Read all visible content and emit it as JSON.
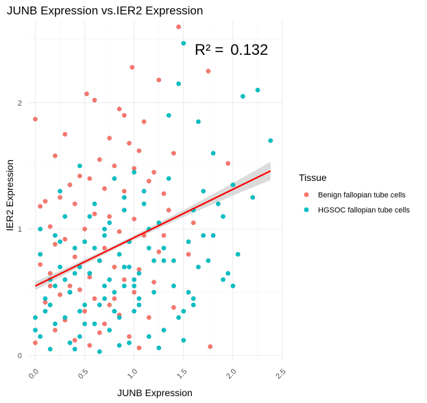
{
  "chart_data": {
    "type": "scatter",
    "title": "JUNB Expression vs.IER2 Expression",
    "xlabel": "JUNB Expression",
    "ylabel": "IER2 Expression",
    "xlim": [
      -0.08,
      2.5
    ],
    "ylim": [
      -0.04,
      2.65
    ],
    "x_ticks": [
      "0.0",
      "0.5",
      "1.0",
      "1.5",
      "2.0",
      "2.5"
    ],
    "x_tick_values": [
      0,
      0.5,
      1.0,
      1.5,
      2.0,
      2.5
    ],
    "y_ticks": [
      "0",
      "1",
      "2"
    ],
    "y_tick_values": [
      0,
      1,
      2
    ],
    "grid": true,
    "legend": {
      "title": "Tissue",
      "position": "right",
      "entries": [
        "Benign fallopian tube cells",
        "HGSOC fallopian tube cells"
      ]
    },
    "annotation": {
      "label": "R² =",
      "value": "0.132"
    },
    "fit": {
      "type": "linear",
      "x": [
        0.0,
        2.38
      ],
      "y": [
        0.55,
        1.46
      ],
      "color": "#ff0000",
      "ci_color": "#bebebe"
    },
    "series": [
      {
        "name": "Benign fallopian tube cells",
        "color": "#f8766d",
        "x": [
          1.45,
          0.98,
          1.77,
          0.0,
          0.52,
          0.6,
          1.25,
          0.85,
          0.9,
          1.1,
          0.3,
          0.75,
          0.95,
          1.05,
          1.4,
          0.2,
          0.65,
          0.8,
          1.0,
          1.2,
          0.45,
          0.55,
          1.15,
          0.35,
          0.7,
          0.9,
          1.3,
          0.25,
          0.1,
          0.4,
          0.05,
          1.35,
          0.6,
          0.75,
          1.0,
          1.6,
          0.15,
          0.5,
          0.85,
          1.1,
          0.3,
          0.95,
          0.2,
          0.7,
          1.25,
          1.55,
          0.4,
          0.65,
          0.05,
          0.8,
          1.05,
          0.15,
          0.55,
          0.9,
          1.2,
          0.35,
          0.45,
          1.0,
          0.25,
          0.6,
          0.1,
          0.75,
          1.4,
          0.5,
          0.85,
          1.15,
          0.3,
          0.7,
          1.95,
          1.75,
          0.2,
          0.65,
          0.95,
          0.4,
          0.0,
          0.55,
          1.05,
          0.8,
          0.15,
          1.3
        ],
        "y": [
          2.6,
          2.28,
          0.07,
          1.87,
          2.07,
          2.02,
          2.18,
          1.95,
          1.9,
          1.85,
          1.75,
          1.72,
          1.68,
          1.62,
          1.6,
          1.58,
          1.55,
          1.5,
          1.48,
          1.45,
          1.42,
          1.4,
          1.38,
          1.35,
          1.32,
          1.3,
          1.28,
          1.25,
          1.22,
          1.2,
          1.18,
          1.15,
          1.12,
          1.1,
          1.08,
          1.05,
          1.02,
          1.0,
          0.98,
          0.95,
          0.92,
          0.9,
          0.88,
          0.85,
          0.82,
          0.8,
          0.78,
          0.75,
          0.72,
          0.7,
          0.68,
          0.65,
          0.62,
          0.6,
          0.58,
          0.55,
          0.52,
          0.5,
          0.48,
          0.45,
          0.42,
          0.4,
          0.38,
          0.35,
          0.32,
          0.3,
          0.28,
          0.25,
          1.52,
          2.25,
          0.2,
          0.18,
          0.15,
          0.12,
          0.1,
          0.08,
          0.06,
          0.45,
          0.55,
          0.95
        ]
      },
      {
        "name": "HGSOC fallopian tube cells",
        "color": "#00bfc4",
        "x": [
          1.5,
          2.25,
          2.38,
          2.1,
          1.45,
          1.8,
          1.65,
          2.0,
          1.9,
          2.2,
          1.35,
          1.7,
          0.45,
          0.8,
          1.1,
          1.0,
          0.6,
          0.9,
          1.25,
          0.3,
          0.7,
          1.55,
          0.2,
          1.15,
          0.5,
          0.85,
          1.3,
          0.4,
          0.95,
          0.05,
          0.65,
          1.05,
          0.25,
          0.75,
          1.4,
          0.55,
          1.2,
          0.15,
          0.9,
          1.6,
          0.35,
          0.7,
          1.05,
          0.1,
          0.8,
          1.45,
          0.5,
          1.0,
          0.3,
          0.6,
          1.3,
          0.2,
          0.75,
          1.15,
          0.45,
          0.0,
          0.95,
          1.5,
          0.4,
          0.85,
          0.15,
          1.25,
          0.65,
          0.35,
          1.1,
          0.55,
          0.25,
          0.9,
          1.35,
          0.05,
          0.7,
          1.6,
          0.45,
          1.0,
          0.2,
          0.8,
          0.6,
          1.2,
          0.3,
          0.1,
          0.5,
          0.85,
          1.05,
          0.4,
          0.75,
          1.4,
          0.0,
          0.65,
          1.15,
          0.25,
          0.95,
          0.55,
          0.35,
          1.3,
          0.15,
          0.7,
          1.0,
          0.45,
          0.9,
          0.05,
          1.75,
          1.85,
          2.05,
          1.95,
          1.55,
          1.7,
          1.65,
          1.8,
          1.9,
          2.0,
          1.5,
          1.6
        ],
        "y": [
          2.47,
          2.1,
          1.7,
          2.05,
          2.15,
          1.6,
          1.85,
          1.35,
          1.1,
          1.25,
          1.9,
          0.95,
          1.5,
          1.4,
          1.3,
          1.45,
          1.2,
          1.15,
          1.05,
          1.1,
          1.0,
          0.9,
          0.95,
          0.85,
          0.9,
          0.8,
          0.75,
          0.85,
          0.7,
          0.8,
          0.75,
          0.65,
          0.7,
          0.6,
          0.55,
          0.65,
          0.5,
          0.6,
          0.55,
          0.45,
          0.5,
          0.45,
          0.4,
          0.45,
          0.35,
          0.3,
          0.4,
          0.35,
          0.3,
          0.25,
          0.2,
          0.25,
          0.2,
          0.15,
          0.15,
          0.2,
          0.1,
          0.12,
          0.05,
          0.08,
          0.05,
          0.06,
          0.03,
          0.1,
          1.2,
          1.1,
          1.3,
          1.25,
          1.4,
          1.0,
          0.95,
          1.15,
          0.7,
          0.6,
          0.55,
          0.5,
          0.85,
          0.75,
          0.6,
          0.35,
          0.25,
          0.3,
          0.45,
          0.65,
          1.05,
          0.75,
          0.3,
          0.4,
          1.0,
          0.9,
          0.9,
          0.65,
          0.5,
          0.85,
          0.4,
          0.55,
          0.55,
          0.35,
          0.7,
          0.15,
          0.75,
          1.2,
          0.8,
          0.65,
          0.5,
          1.3,
          0.7,
          0.95,
          0.6,
          0.55,
          0.35,
          0.4
        ]
      }
    ]
  }
}
